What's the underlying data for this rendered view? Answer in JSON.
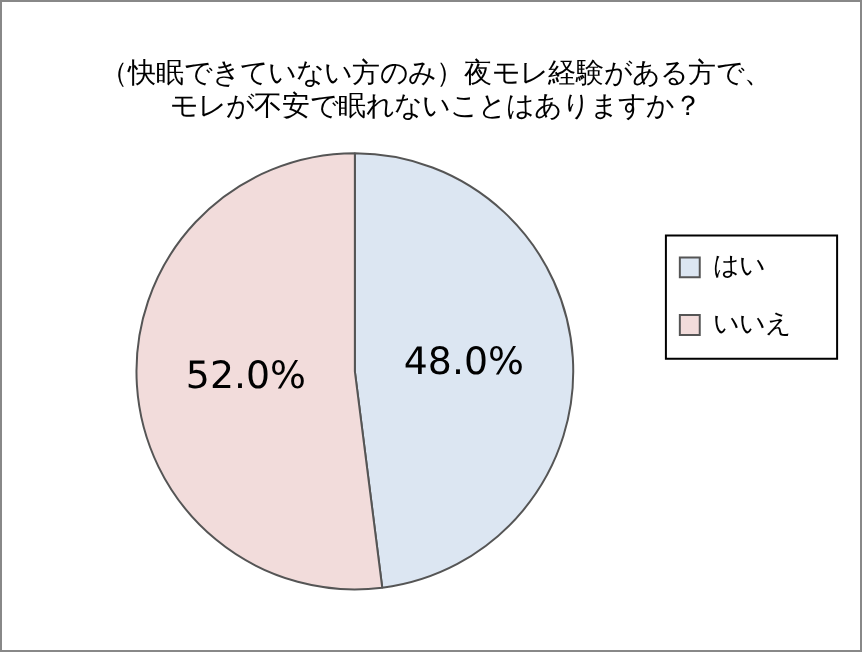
{
  "chart_data": {
    "type": "pie",
    "title": "（快眠できていない方のみ）夜モレ経験がある方で、モレが不安で眠れないことはありますか？",
    "categories": [
      "はい",
      "いいえ"
    ],
    "values": [
      48.0,
      52.0
    ],
    "colors": [
      "#dce6f2",
      "#f2dcdb"
    ],
    "value_labels": [
      "48.0%",
      "52.0%"
    ],
    "legend": "right"
  }
}
